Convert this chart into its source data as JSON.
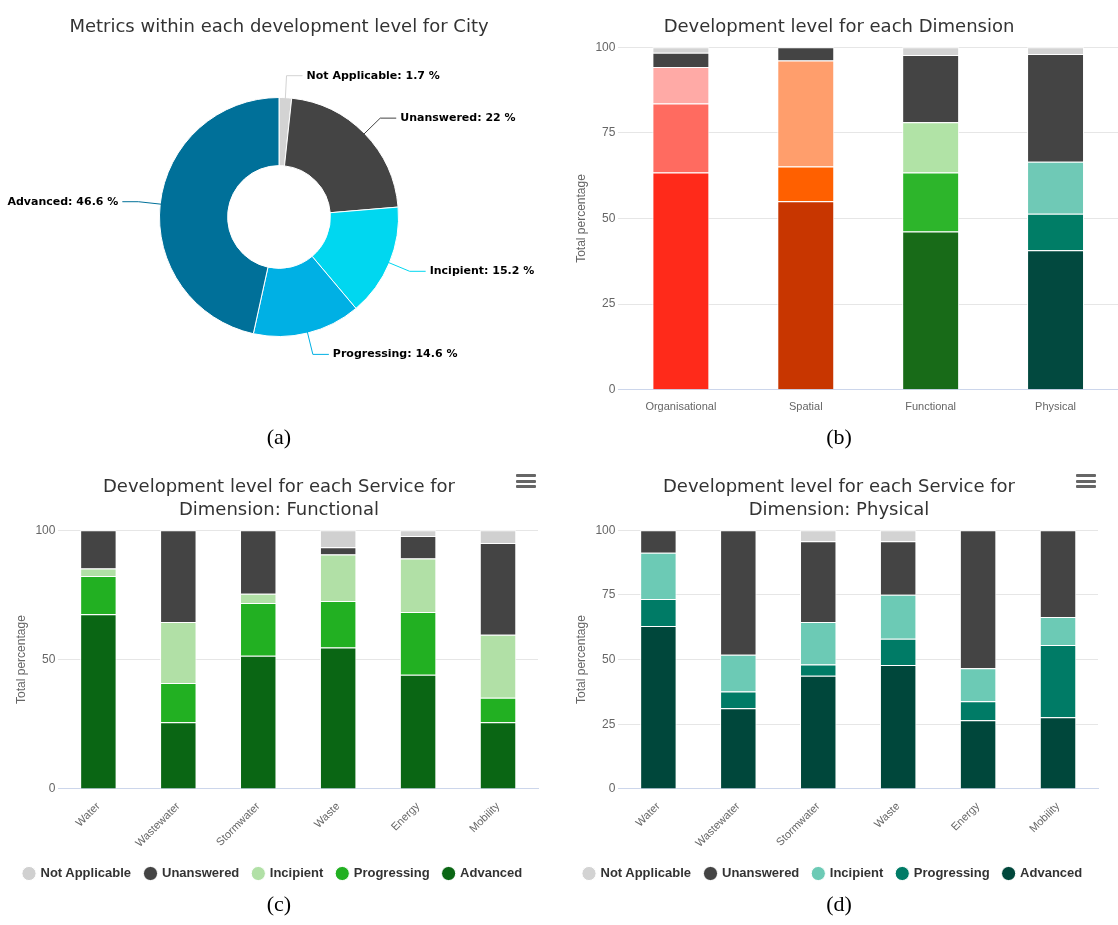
{
  "chart_data": [
    {
      "type": "donut",
      "title": "Metrics within each development level for City",
      "categories": [
        "Not Applicable",
        "Unanswered",
        "Incipient",
        "Progressing",
        "Advanced"
      ],
      "values": [
        1.7,
        22,
        15.2,
        14.6,
        46.6
      ],
      "colors": [
        "#d3d3d3",
        "#444444",
        "#00d7f0",
        "#00b0e4",
        "#007099"
      ],
      "value_labels": [
        "1.7 %",
        "22 %",
        "15.2 %",
        "14.6 %",
        "46.6 %"
      ],
      "annotations": [
        "(a)"
      ]
    },
    {
      "type": "bar",
      "title": "Development level for each Dimension",
      "ylabel": "Total percentage",
      "categories": [
        "Organisational",
        "Spatial",
        "Functional",
        "Physical"
      ],
      "stacked": true,
      "ylim": [
        0,
        100
      ],
      "yticks": [
        0,
        25,
        50,
        75,
        100
      ],
      "grid": "y",
      "series": [
        {
          "colors": [
            "#ff2a1a",
            "#c83600",
            "#186b18",
            "#02493f"
          ],
          "values": [
            63.4,
            55.0,
            46.2,
            40.7
          ]
        },
        {
          "colors": [
            "#ff6b60",
            "#ff6000",
            "#2db52b",
            "#007d66"
          ],
          "values": [
            20.2,
            10.2,
            17.2,
            10.7
          ]
        },
        {
          "colors": [
            "#ffaaa6",
            "#ff9e6c",
            "#b1e3a6",
            "#6fc9b6"
          ],
          "values": [
            10.6,
            30.9,
            14.7,
            15.2
          ]
        },
        {
          "colors": [
            "#444444",
            "#444444",
            "#444444",
            "#444444"
          ],
          "values": [
            4.2,
            3.9,
            19.6,
            31.4
          ]
        },
        {
          "colors": [
            "#d3d3d3",
            "#d3d3d3",
            "#d3d3d3",
            "#d3d3d3"
          ],
          "values": [
            1.6,
            0,
            2.3,
            2.0
          ]
        }
      ],
      "annotations": [
        "(b)"
      ]
    },
    {
      "type": "bar",
      "title": "Development level for each Service for Dimension: Functional",
      "ylabel": "Total percentage",
      "categories": [
        "Water",
        "Wastewater",
        "Stormwater",
        "Waste",
        "Energy",
        "Mobility"
      ],
      "stacked": true,
      "ylim": [
        0,
        100
      ],
      "yticks": [
        0,
        50,
        100
      ],
      "grid": "y",
      "legend": "bottom",
      "series": [
        {
          "name": "Advanced",
          "color": "#0a6614",
          "values": [
            67.5,
            25.8,
            51.5,
            54.7,
            44.1,
            25.8
          ]
        },
        {
          "name": "Progressing",
          "color": "#22b022",
          "values": [
            14.8,
            15.1,
            20.4,
            17.9,
            24.3,
            9.4
          ]
        },
        {
          "name": "Incipient",
          "color": "#b1e0a6",
          "values": [
            2.9,
            23.6,
            3.5,
            18.0,
            20.7,
            24.4
          ]
        },
        {
          "name": "Unanswered",
          "color": "#444444",
          "values": [
            14.8,
            35.5,
            24.6,
            2.8,
            8.7,
            35.5
          ]
        },
        {
          "name": "Not Applicable",
          "color": "#d0d0d0",
          "values": [
            0,
            0,
            0,
            6.6,
            2.2,
            4.9
          ]
        }
      ],
      "annotations": [
        "(c)"
      ]
    },
    {
      "type": "bar",
      "title": "Development level for each Service for Dimension: Physical",
      "ylabel": "Total percentage",
      "categories": [
        "Water",
        "Wastewater",
        "Stormwater",
        "Waste",
        "Energy",
        "Mobility"
      ],
      "stacked": true,
      "ylim": [
        0,
        100
      ],
      "yticks": [
        0,
        25,
        50,
        75,
        100
      ],
      "grid": "y",
      "legend": "bottom",
      "series": [
        {
          "name": "Advanced",
          "color": "#00473b",
          "values": [
            63.0,
            31.2,
            43.7,
            47.9,
            26.5,
            27.7
          ]
        },
        {
          "name": "Progressing",
          "color": "#007b66",
          "values": [
            10.4,
            6.4,
            4.4,
            10.1,
            7.4,
            27.9
          ]
        },
        {
          "name": "Incipient",
          "color": "#6ccab5",
          "values": [
            17.9,
            14.3,
            16.4,
            17.0,
            12.7,
            10.8
          ]
        },
        {
          "name": "Unanswered",
          "color": "#444444",
          "values": [
            8.7,
            48.1,
            31.2,
            20.7,
            53.4,
            33.6
          ]
        },
        {
          "name": "Not Applicable",
          "color": "#d3d3d3",
          "values": [
            0,
            0,
            4.3,
            4.3,
            0,
            0
          ]
        }
      ],
      "annotations": [
        "(d)"
      ]
    }
  ]
}
